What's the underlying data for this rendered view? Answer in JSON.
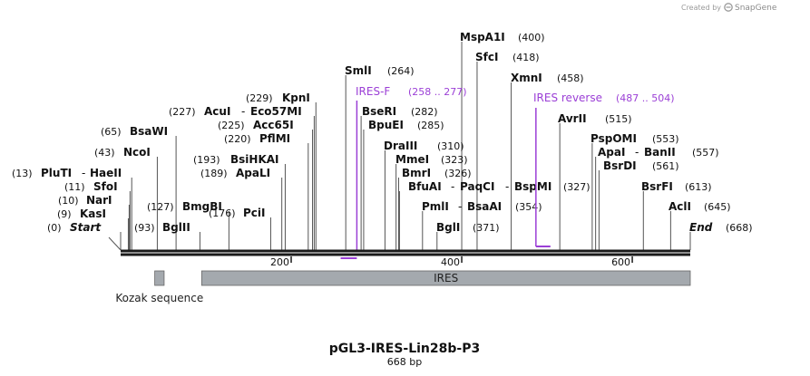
{
  "credit": {
    "prefix": "Created by",
    "brand": "SnapGene"
  },
  "sequence": {
    "name": "pGL3-IRES-Lin28b-P3",
    "length_label": "668 bp",
    "length": 668
  },
  "sites": [
    {
      "label": "Start",
      "pos": "(0)",
      "bp": 0,
      "italic": true
    },
    {
      "label": "KasI",
      "pos": "(9)",
      "bp": 9
    },
    {
      "label": "NarI",
      "pos": "(10)",
      "bp": 10
    },
    {
      "label": "SfoI",
      "pos": "(11)",
      "bp": 11
    },
    {
      "label": "PluTI",
      "pos": "(13)",
      "bp": 13
    },
    {
      "label": "HaeII",
      "pos": "",
      "bp": 13
    },
    {
      "label": "NcoI",
      "pos": "(43)",
      "bp": 43
    },
    {
      "label": "BsaWI",
      "pos": "(65)",
      "bp": 65
    },
    {
      "label": "BglII",
      "pos": "(93)",
      "bp": 93
    },
    {
      "label": "BmgBI",
      "pos": "(127)",
      "bp": 127
    },
    {
      "label": "PciI",
      "pos": "(176)",
      "bp": 176
    },
    {
      "label": "ApaLI",
      "pos": "(189)",
      "bp": 189
    },
    {
      "label": "BsiHKAI",
      "pos": "(193)",
      "bp": 193
    },
    {
      "label": "PflMI",
      "pos": "(220)",
      "bp": 220
    },
    {
      "label": "Acc65I",
      "pos": "(225)",
      "bp": 225
    },
    {
      "label": "AcuI",
      "pos": "(227)",
      "bp": 227
    },
    {
      "label": "Eco57MI",
      "pos": "",
      "bp": 227
    },
    {
      "label": "KpnI",
      "pos": "(229)",
      "bp": 229
    },
    {
      "label": "SmlI",
      "pos": "(264)",
      "bp": 264
    },
    {
      "label": "BseRI",
      "pos": "(282)",
      "bp": 282
    },
    {
      "label": "BpuEI",
      "pos": "(285)",
      "bp": 285
    },
    {
      "label": "DraIII",
      "pos": "(310)",
      "bp": 310
    },
    {
      "label": "MmeI",
      "pos": "(323)",
      "bp": 323
    },
    {
      "label": "BmrI",
      "pos": "(326)",
      "bp": 326
    },
    {
      "label": "BfuAI",
      "pos": "",
      "bp": 327
    },
    {
      "label": "PaqCI",
      "pos": "",
      "bp": 327
    },
    {
      "label": "BspMI",
      "pos": "(327)",
      "bp": 327
    },
    {
      "label": "PmlI",
      "pos": "",
      "bp": 354
    },
    {
      "label": "BsaAI",
      "pos": "(354)",
      "bp": 354
    },
    {
      "label": "BglI",
      "pos": "(371)",
      "bp": 371
    },
    {
      "label": "MspA1I",
      "pos": "(400)",
      "bp": 400
    },
    {
      "label": "SfcI",
      "pos": "(418)",
      "bp": 418
    },
    {
      "label": "XmnI",
      "pos": "(458)",
      "bp": 458
    },
    {
      "label": "AvrII",
      "pos": "(515)",
      "bp": 515
    },
    {
      "label": "PspOMI",
      "pos": "(553)",
      "bp": 553
    },
    {
      "label": "ApaI",
      "pos": "",
      "bp": 557
    },
    {
      "label": "BanII",
      "pos": "(557)",
      "bp": 557
    },
    {
      "label": "BsrDI",
      "pos": "(561)",
      "bp": 561
    },
    {
      "label": "BsrFI",
      "pos": "(613)",
      "bp": 613
    },
    {
      "label": "AclI",
      "pos": "(645)",
      "bp": 645
    },
    {
      "label": "End",
      "pos": "(668)",
      "bp": 668,
      "italic": true
    }
  ],
  "primers": [
    {
      "label": "IRES-F",
      "range": "(258 .. 277)",
      "start": 258,
      "end": 277,
      "strand": "forward"
    },
    {
      "label": "IRES reverse",
      "range": "(487 .. 504)",
      "start": 487,
      "end": 504,
      "strand": "reverse"
    }
  ],
  "ticks": [
    {
      "label": "200",
      "bp": 200
    },
    {
      "label": "400",
      "bp": 400
    },
    {
      "label": "600",
      "bp": 600
    }
  ],
  "features": [
    {
      "label": "Kozak sequence",
      "start": 40,
      "end": 51,
      "color": "#a4a9ae",
      "label_below": true
    },
    {
      "label": "IRES",
      "start": 95,
      "end": 668,
      "color": "#a4a9ae",
      "label_below": false
    }
  ],
  "colors": {
    "backbone": "#1a1a1a",
    "primer": "#9b3fd6",
    "feature": "#a4a9ae",
    "leader": "#555555"
  }
}
